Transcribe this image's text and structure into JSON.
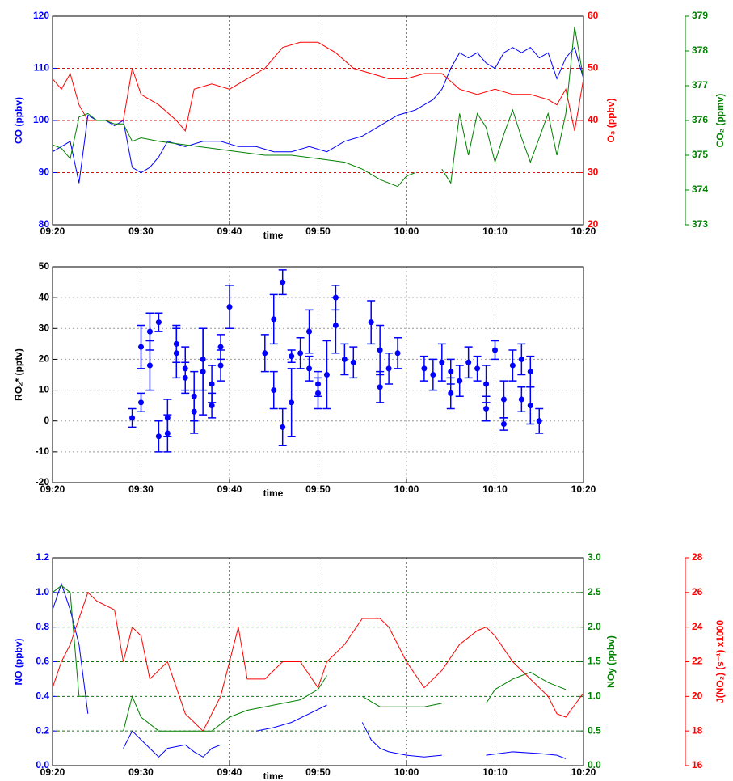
{
  "chart_data": [
    {
      "type": "line",
      "xlabel": "time",
      "xlim": [
        "09:20",
        "10:20"
      ],
      "xticks": [
        "09:20",
        "09:30",
        "09:40",
        "09:50",
        "10:00",
        "10:10",
        "10:20"
      ],
      "ylabel": "CO (ppbv)",
      "ylim": [
        80,
        120
      ],
      "yticks": [
        80,
        90,
        100,
        110,
        120
      ],
      "y2label": "O₃ (ppbv)",
      "y2lim": [
        20,
        60
      ],
      "y2ticks": [
        20,
        30,
        40,
        50,
        60
      ],
      "y3label": "CO₂ (ppmv)",
      "y3lim": [
        373,
        379
      ],
      "y3ticks": [
        373,
        374,
        375,
        376,
        377,
        378,
        379
      ],
      "grid": true,
      "grid_axis": "y2",
      "grid_color": "#ff0000",
      "series": [
        {
          "color": "#0000ff",
          "axis": "y",
          "x": [
            "09:20",
            "09:21",
            "09:22",
            "09:23",
            "09:24",
            "09:25",
            "09:26",
            "09:27",
            "09:28",
            "09:29",
            "09:30",
            "09:31",
            "09:32",
            "09:33",
            "09:35",
            "09:37",
            "09:39",
            "09:41",
            "09:43",
            "09:45",
            "09:47",
            "09:49",
            "09:51",
            "09:53",
            "09:55",
            "09:57",
            "09:59",
            "10:01",
            "10:03",
            "10:04",
            "10:05",
            "10:06",
            "10:07",
            "10:08",
            "10:09",
            "10:10",
            "10:11",
            "10:12",
            "10:13",
            "10:14",
            "10:15",
            "10:16",
            "10:17",
            "10:18",
            "10:19",
            "10:20"
          ],
          "values": [
            94,
            95,
            96,
            88,
            101,
            100,
            100,
            99,
            100,
            91,
            90,
            91,
            93,
            96,
            95,
            96,
            96,
            95,
            95,
            94,
            94,
            95,
            94,
            96,
            97,
            99,
            101,
            102,
            104,
            106,
            110,
            113,
            112,
            113,
            111,
            110,
            113,
            114,
            113,
            114,
            112,
            113,
            108,
            112,
            114,
            108
          ]
        },
        {
          "color": "#ff0000",
          "axis": "y2",
          "x": [
            "09:20",
            "09:21",
            "09:22",
            "09:23",
            "09:24",
            "09:26",
            "09:28",
            "09:29",
            "09:30",
            "09:32",
            "09:34",
            "09:35",
            "09:36",
            "09:38",
            "09:40",
            "09:42",
            "09:44",
            "09:46",
            "09:48",
            "09:50",
            "09:52",
            "09:54",
            "09:56",
            "09:58",
            "10:00",
            "10:02",
            "10:04",
            "10:06",
            "10:08",
            "10:10",
            "10:12",
            "10:14",
            "10:16",
            "10:17",
            "10:18",
            "10:19",
            "10:20"
          ],
          "values": [
            48,
            46,
            49,
            43,
            40,
            40,
            40,
            50,
            45,
            43,
            40,
            38,
            46,
            47,
            46,
            48,
            50,
            54,
            55,
            55,
            53,
            50,
            49,
            48,
            48,
            49,
            49,
            46,
            45,
            46,
            45,
            45,
            44,
            43,
            46,
            38,
            48
          ]
        },
        {
          "color": "#008000",
          "axis": "y3",
          "x": [
            "09:20",
            "09:21",
            "09:22",
            "09:23",
            "09:24",
            "09:25",
            "09:26",
            "09:27",
            "09:28",
            "09:29",
            "09:30",
            "09:32",
            "09:35",
            "09:38",
            "09:41",
            "09:44",
            "09:47",
            "09:50",
            "09:53",
            "09:55",
            "09:57",
            "09:59",
            "10:00",
            "10:01",
            "10:02",
            "10:04",
            "10:05",
            "10:06",
            "10:07",
            "10:08",
            "10:09",
            "10:10",
            "10:11",
            "10:12",
            "10:13",
            "10:14",
            "10:15",
            "10:16",
            "10:17",
            "10:18",
            "10:19",
            "10:20"
          ],
          "values": [
            375.3,
            375.2,
            374.9,
            376.1,
            376.2,
            376.0,
            376.0,
            375.9,
            375.9,
            375.4,
            375.5,
            375.4,
            375.3,
            375.2,
            375.1,
            375.0,
            375.0,
            374.9,
            374.8,
            374.6,
            374.3,
            374.1,
            374.4,
            374.5,
            null,
            374.6,
            374.2,
            376.2,
            375.0,
            376.2,
            375.8,
            374.8,
            375.6,
            376.3,
            375.5,
            374.8,
            375.5,
            376.2,
            375.0,
            376.2,
            378.7,
            377.2
          ]
        }
      ]
    },
    {
      "type": "errorbar",
      "xlabel": "time",
      "xlim": [
        "09:20",
        "10:20"
      ],
      "xticks": [
        "09:20",
        "09:30",
        "09:40",
        "09:50",
        "10:00",
        "10:10",
        "10:20"
      ],
      "ylabel": "RO₂* (pptv)",
      "ylim": [
        -20,
        50
      ],
      "yticks": [
        -20,
        -10,
        0,
        10,
        20,
        30,
        40,
        50
      ],
      "grid": true,
      "grid_color": "#999999",
      "series": [
        {
          "color": "#0000ff",
          "x": [
            "09:29",
            "09:30",
            "09:30",
            "09:31",
            "09:31",
            "09:32",
            "09:32",
            "09:33",
            "09:33",
            "09:34",
            "09:34",
            "09:35",
            "09:35",
            "09:36",
            "09:36",
            "09:37",
            "09:37",
            "09:38",
            "09:38",
            "09:39",
            "09:39",
            "09:40",
            "09:44",
            "09:45",
            "09:45",
            "09:46",
            "09:46",
            "09:47",
            "09:47",
            "09:48",
            "09:49",
            "09:49",
            "09:50",
            "09:50",
            "09:51",
            "09:52",
            "09:52",
            "09:53",
            "09:54",
            "09:56",
            "09:57",
            "09:57",
            "09:58",
            "09:59",
            "10:02",
            "10:03",
            "10:04",
            "10:05",
            "10:05",
            "10:06",
            "10:07",
            "10:08",
            "10:09",
            "10:09",
            "10:10",
            "10:11",
            "10:11",
            "10:12",
            "10:13",
            "10:13",
            "10:14",
            "10:14",
            "10:15"
          ],
          "values": [
            1,
            6,
            24,
            18,
            29,
            32,
            -5,
            1,
            -4,
            22,
            25,
            14,
            17,
            8,
            3,
            16,
            20,
            5,
            12,
            18,
            24,
            37,
            22,
            10,
            33,
            45,
            -2,
            6,
            21,
            22,
            17,
            29,
            12,
            9,
            15,
            31,
            40,
            20,
            19,
            32,
            23,
            11,
            17,
            22,
            17,
            15,
            19,
            9,
            16,
            13,
            19,
            17,
            4,
            12,
            23,
            -1,
            7,
            18,
            20,
            7,
            16,
            5,
            0
          ],
          "errors": [
            3,
            3,
            7,
            8,
            6,
            3,
            5,
            6,
            6,
            8,
            6,
            5,
            7,
            8,
            7,
            14,
            10,
            4,
            6,
            5,
            4,
            7,
            6,
            6,
            8,
            4,
            6,
            11,
            2,
            5,
            4,
            7,
            4,
            5,
            11,
            9,
            4,
            5,
            5,
            7,
            8,
            5,
            5,
            5,
            4,
            5,
            6,
            5,
            4,
            5,
            5,
            4,
            4,
            6,
            3,
            2,
            6,
            5,
            5,
            4,
            5,
            6,
            4
          ]
        }
      ]
    },
    {
      "type": "line",
      "xlabel": "time",
      "xlim": [
        "09:20",
        "10:20"
      ],
      "xticks": [
        "09:20",
        "09:30",
        "09:40",
        "09:50",
        "10:00",
        "10:10",
        "10:20"
      ],
      "ylabel": "NO (ppbv)",
      "ylim": [
        0,
        1.2
      ],
      "yticks": [
        {
          "value": 0,
          "label": "0.0"
        },
        0.2,
        0.4,
        0.6,
        0.8,
        {
          "value": 1,
          "label": "1.0"
        },
        1.2
      ],
      "y2label": "NOy (ppbv)",
      "y2lim": [
        0,
        3
      ],
      "y2ticks": [
        {
          "value": 0,
          "label": "0.0"
        },
        0.5,
        {
          "value": 1,
          "label": "1.0"
        },
        1.5,
        {
          "value": 2,
          "label": "2.0"
        },
        2.5,
        {
          "value": 3,
          "label": "3.0"
        }
      ],
      "y3label": "J(NO₂) (s⁻¹) x1000",
      "y3lim": [
        16,
        28
      ],
      "y3ticks": [
        16,
        18,
        20,
        22,
        24,
        26,
        28
      ],
      "grid": true,
      "grid_axis": "y2",
      "grid_color": "#008000",
      "series": [
        {
          "color": "#0000ff",
          "axis": "y",
          "x": [
            "09:20",
            "09:21",
            "09:22",
            "09:23",
            "09:24",
            "09:25",
            "09:28",
            "09:29",
            "09:30",
            "09:31",
            "09:32",
            "09:33",
            "09:35",
            "09:36",
            "09:37",
            "09:38",
            "09:39",
            "09:41",
            "09:43",
            "09:45",
            "09:47",
            "09:49",
            "09:51",
            "09:53",
            "09:55",
            "09:56",
            "09:57",
            "09:58",
            "10:00",
            "10:02",
            "10:04",
            "10:06",
            "10:09",
            "10:12",
            "10:15",
            "10:17",
            "10:18"
          ],
          "values": [
            0.9,
            1.05,
            0.9,
            0.7,
            0.3,
            null,
            0.1,
            0.2,
            0.15,
            0.1,
            0.05,
            0.1,
            0.12,
            0.08,
            0.05,
            0.1,
            0.12,
            null,
            0.2,
            0.22,
            0.25,
            0.3,
            0.35,
            null,
            0.25,
            0.15,
            0.1,
            0.08,
            0.06,
            0.05,
            0.06,
            null,
            0.06,
            0.08,
            0.07,
            0.06,
            0.04
          ]
        },
        {
          "color": "#008000",
          "axis": "y2",
          "x": [
            "09:20",
            "09:21",
            "09:22",
            "09:23",
            "09:24",
            "09:26",
            "09:28",
            "09:29",
            "09:30",
            "09:32",
            "09:34",
            "09:36",
            "09:38",
            "09:40",
            "09:42",
            "09:44",
            "09:46",
            "09:48",
            "09:50",
            "09:51",
            "09:53",
            "09:55",
            "09:57",
            "10:00",
            "10:02",
            "10:04",
            "10:06",
            "10:09",
            "10:10",
            "10:12",
            "10:14",
            "10:16",
            "10:18"
          ],
          "values": [
            2.5,
            2.6,
            2.5,
            1.0,
            1.0,
            null,
            0.5,
            1.0,
            0.7,
            0.5,
            0.5,
            0.5,
            0.5,
            0.7,
            0.8,
            0.85,
            0.9,
            0.95,
            1.1,
            1.3,
            null,
            1.0,
            0.85,
            0.85,
            0.85,
            0.9,
            null,
            0.9,
            1.1,
            1.25,
            1.35,
            1.2,
            1.1
          ]
        },
        {
          "color": "#ff0000",
          "axis": "y3",
          "x": [
            "09:20",
            "09:21",
            "09:22",
            "09:23",
            "09:24",
            "09:25",
            "09:27",
            "09:28",
            "09:29",
            "09:30",
            "09:31",
            "09:33",
            "09:35",
            "09:37",
            "09:39",
            "09:40",
            "09:41",
            "09:42",
            "09:44",
            "09:46",
            "09:48",
            "09:50",
            "09:51",
            "09:53",
            "09:55",
            "09:57",
            "09:58",
            "09:59",
            "10:00",
            "10:02",
            "10:04",
            "10:06",
            "10:08",
            "10:09",
            "10:10",
            "10:12",
            "10:14",
            "10:16",
            "10:17",
            "10:18",
            "10:19",
            "10:20"
          ],
          "values": [
            20.5,
            22,
            23,
            24.5,
            26,
            25.5,
            25,
            22,
            24,
            23.5,
            21,
            22,
            19,
            18,
            20,
            22,
            24,
            21,
            21,
            22,
            22,
            20.5,
            22,
            23,
            24.5,
            24.5,
            24,
            23,
            22,
            20.5,
            21.5,
            23,
            23.8,
            24,
            23.5,
            22,
            21,
            20,
            19,
            18.8,
            19.5,
            20.2
          ]
        }
      ]
    }
  ]
}
